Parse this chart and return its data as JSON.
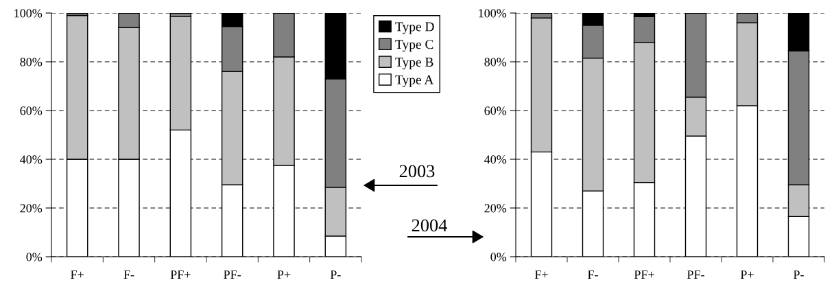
{
  "chart_data": [
    {
      "type": "bar",
      "stacked": true,
      "categories": [
        "F+",
        "F-",
        "PF+",
        "PF-",
        "P+",
        "P-"
      ],
      "series": [
        {
          "name": "Type A",
          "color": "#ffffff",
          "values": [
            40,
            40,
            52,
            29.5,
            37.5,
            8.5
          ]
        },
        {
          "name": "Type B",
          "color": "#c0c0c0",
          "values": [
            59,
            54,
            46.5,
            46.5,
            44.5,
            20
          ]
        },
        {
          "name": "Type C",
          "color": "#808080",
          "values": [
            1,
            6,
            1.5,
            18.5,
            18,
            44.5
          ]
        },
        {
          "name": "Type D",
          "color": "#000000",
          "values": [
            0,
            0,
            0,
            5.5,
            0,
            27
          ]
        }
      ],
      "ylim": [
        0,
        100
      ],
      "yticks": [
        {
          "value": 0,
          "label": "0%"
        },
        {
          "value": 20,
          "label": "20%"
        },
        {
          "value": 40,
          "label": "40%"
        },
        {
          "value": 60,
          "label": "60%"
        },
        {
          "value": 80,
          "label": "80%"
        },
        {
          "value": 100,
          "label": "100%"
        }
      ],
      "grid": "y",
      "legend": "top right",
      "annotations": [
        "2003"
      ]
    },
    {
      "type": "bar",
      "stacked": true,
      "categories": [
        "F+",
        "F-",
        "PF+",
        "PF-",
        "P+",
        "P-"
      ],
      "series": [
        {
          "color": "#ffffff",
          "values": [
            43,
            27,
            30.5,
            49.5,
            62,
            16.5
          ]
        },
        {
          "color": "#c0c0c0",
          "values": [
            55,
            54.5,
            57.5,
            16,
            34,
            13
          ]
        },
        {
          "color": "#808080",
          "values": [
            2,
            13.5,
            10.5,
            34.5,
            4,
            55
          ]
        },
        {
          "color": "#000000",
          "values": [
            0,
            5,
            1.5,
            0,
            0,
            15.5
          ]
        }
      ],
      "ylim": [
        0,
        100
      ],
      "yticks": [
        {
          "value": 0,
          "label": "0%"
        },
        {
          "value": 20,
          "label": "20%"
        },
        {
          "value": 40,
          "label": "40%"
        },
        {
          "value": 60,
          "label": "60%"
        },
        {
          "value": 80,
          "label": "80%"
        },
        {
          "value": 100,
          "label": "100%"
        }
      ],
      "grid": "y",
      "annotations": [
        "2004"
      ]
    }
  ]
}
